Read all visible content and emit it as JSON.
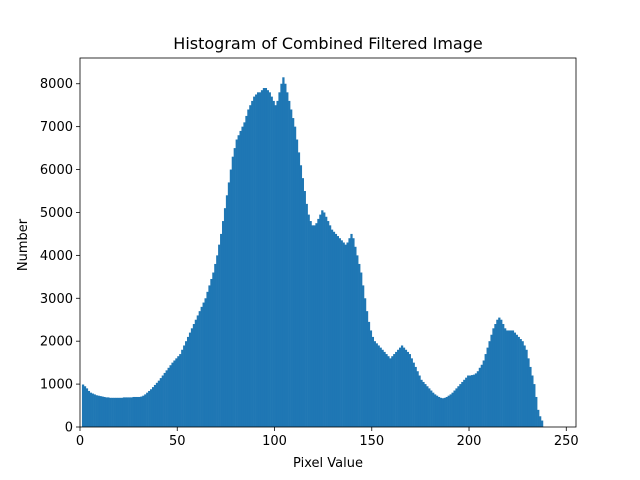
{
  "chart_data": {
    "type": "bar",
    "title": "Histogram of Combined Filtered Image",
    "xlabel": "Pixel Value",
    "ylabel": "Number",
    "xlim": [
      0,
      255
    ],
    "ylim": [
      0,
      8600
    ],
    "xticks": [
      0,
      50,
      100,
      150,
      200,
      250
    ],
    "yticks": [
      0,
      1000,
      2000,
      3000,
      4000,
      5000,
      6000,
      7000,
      8000
    ],
    "grid": false,
    "bar_color": "#1f77b4",
    "series": [
      {
        "values": [
          0,
          990,
          950,
          900,
          840,
          800,
          780,
          760,
          740,
          730,
          720,
          710,
          700,
          690,
          690,
          680,
          680,
          680,
          680,
          680,
          680,
          680,
          690,
          690,
          690,
          690,
          690,
          700,
          700,
          700,
          700,
          710,
          730,
          760,
          800,
          840,
          880,
          930,
          980,
          1030,
          1080,
          1140,
          1200,
          1260,
          1320,
          1380,
          1440,
          1500,
          1550,
          1600,
          1650,
          1700,
          1800,
          1900,
          2000,
          2100,
          2200,
          2300,
          2400,
          2500,
          2600,
          2700,
          2800,
          2900,
          3000,
          3150,
          3300,
          3450,
          3600,
          3800,
          4000,
          4250,
          4500,
          4800,
          5100,
          5400,
          5700,
          6000,
          6300,
          6500,
          6700,
          6800,
          6900,
          7000,
          7100,
          7250,
          7400,
          7500,
          7600,
          7700,
          7750,
          7800,
          7800,
          7850,
          7900,
          7900,
          7850,
          7800,
          7700,
          7600,
          7500,
          7600,
          7800,
          8000,
          8150,
          8000,
          7800,
          7600,
          7400,
          7200,
          7000,
          6700,
          6400,
          6100,
          5800,
          5500,
          5200,
          4950,
          4800,
          4700,
          4700,
          4750,
          4850,
          4950,
          5050,
          5000,
          4900,
          4800,
          4700,
          4600,
          4550,
          4500,
          4450,
          4400,
          4350,
          4300,
          4250,
          4300,
          4400,
          4500,
          4400,
          4200,
          4000,
          3800,
          3600,
          3300,
          3000,
          2700,
          2450,
          2250,
          2100,
          2000,
          1950,
          1900,
          1850,
          1800,
          1750,
          1700,
          1650,
          1600,
          1650,
          1700,
          1750,
          1800,
          1850,
          1900,
          1850,
          1800,
          1750,
          1700,
          1600,
          1500,
          1400,
          1300,
          1200,
          1100,
          1050,
          1000,
          950,
          900,
          850,
          800,
          760,
          730,
          700,
          680,
          670,
          680,
          700,
          730,
          760,
          800,
          850,
          900,
          950,
          1000,
          1050,
          1100,
          1150,
          1200,
          1200,
          1210,
          1220,
          1250,
          1300,
          1380,
          1450,
          1550,
          1700,
          1850,
          2000,
          2150,
          2300,
          2400,
          2500,
          2550,
          2500,
          2400,
          2300,
          2250,
          2250,
          2250,
          2250,
          2200,
          2150,
          2100,
          2050,
          2000,
          1900,
          1800,
          1600,
          1400,
          1200,
          1000,
          700,
          400,
          250,
          150
        ]
      }
    ]
  }
}
